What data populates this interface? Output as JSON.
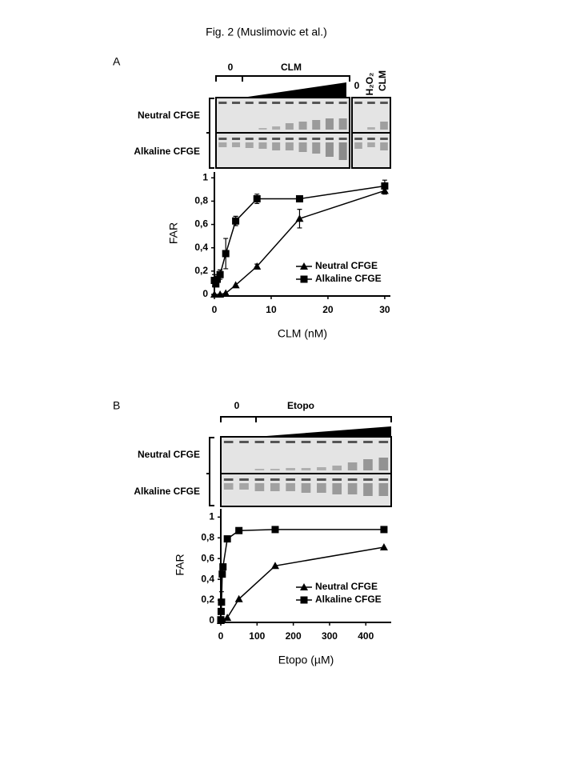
{
  "figure": {
    "title": "Fig. 2 (Muslimovic et al.)",
    "panels": [
      {
        "label": "A",
        "gel": {
          "zero": "0",
          "drug": "CLM",
          "rows": [
            "Neutral CFGE",
            "Alkaline CFGE"
          ],
          "controls": [
            "0",
            "H₂O₂",
            "CLM"
          ]
        }
      },
      {
        "label": "B",
        "gel": {
          "zero": "0",
          "drug": "Etopo",
          "rows": [
            "Neutral CFGE",
            "Alkaline CFGE"
          ]
        }
      }
    ]
  },
  "chart_data": [
    {
      "type": "line",
      "xlabel": "CLM (nM)",
      "ylabel": "FAR",
      "xlim": [
        0,
        31
      ],
      "ylim": [
        0,
        1.05
      ],
      "xticks": [
        0,
        10,
        20,
        30
      ],
      "yticks": [
        0,
        {
          "value": 0.2,
          "label": "0,2"
        },
        {
          "value": 0.4,
          "label": "0,4"
        },
        {
          "value": 0.6,
          "label": "0,6"
        },
        {
          "value": 0.8,
          "label": "0,8"
        },
        1
      ],
      "legend": "lower right",
      "series": [
        {
          "name": "Neutral CFGE",
          "color": "#000000",
          "marker": "triangle",
          "x": [
            0,
            1,
            2,
            3.75,
            7.5,
            15,
            30
          ],
          "values": [
            0,
            0,
            0.01,
            0.08,
            0.24,
            0.65,
            0.89
          ],
          "errors": [
            null,
            null,
            null,
            null,
            0.02,
            0.08,
            0.03
          ]
        },
        {
          "name": "Alkaline CFGE",
          "color": "#000000",
          "marker": "square",
          "x": [
            0,
            0.25,
            0.5,
            1,
            2,
            3.75,
            7.5,
            15,
            30
          ],
          "values": [
            0.12,
            0.09,
            0.13,
            0.17,
            0.35,
            0.63,
            0.82,
            0.82,
            0.93
          ],
          "errors": [
            0.05,
            null,
            null,
            0.04,
            0.13,
            0.04,
            0.04,
            0.02,
            0.05
          ]
        }
      ]
    },
    {
      "type": "line",
      "xlabel": "Etopo (µM)",
      "ylabel": "FAR",
      "xlim": [
        0,
        470
      ],
      "ylim": [
        0,
        1.08
      ],
      "xticks": [
        0,
        100,
        200,
        300,
        400
      ],
      "yticks": [
        0,
        {
          "value": 0.2,
          "label": "0,2"
        },
        {
          "value": 0.4,
          "label": "0,4"
        },
        {
          "value": 0.6,
          "label": "0,6"
        },
        {
          "value": 0.8,
          "label": "0,8"
        },
        1
      ],
      "legend": "lower right",
      "series": [
        {
          "name": "Neutral CFGE",
          "color": "#000000",
          "marker": "triangle",
          "x": [
            0,
            5,
            18,
            50,
            150,
            450
          ],
          "values": [
            0,
            0.01,
            0.03,
            0.21,
            0.53,
            0.71
          ],
          "errors": [
            null,
            null,
            null,
            null,
            null,
            null
          ]
        },
        {
          "name": "Alkaline CFGE",
          "color": "#000000",
          "marker": "square",
          "x": [
            0,
            1,
            2,
            4,
            6,
            18,
            50,
            150,
            450
          ],
          "values": [
            0.01,
            0.09,
            0.18,
            0.45,
            0.52,
            0.79,
            0.87,
            0.88,
            0.88
          ],
          "errors": [
            null,
            null,
            0.1,
            null,
            null,
            null,
            null,
            null,
            null
          ]
        }
      ]
    }
  ]
}
